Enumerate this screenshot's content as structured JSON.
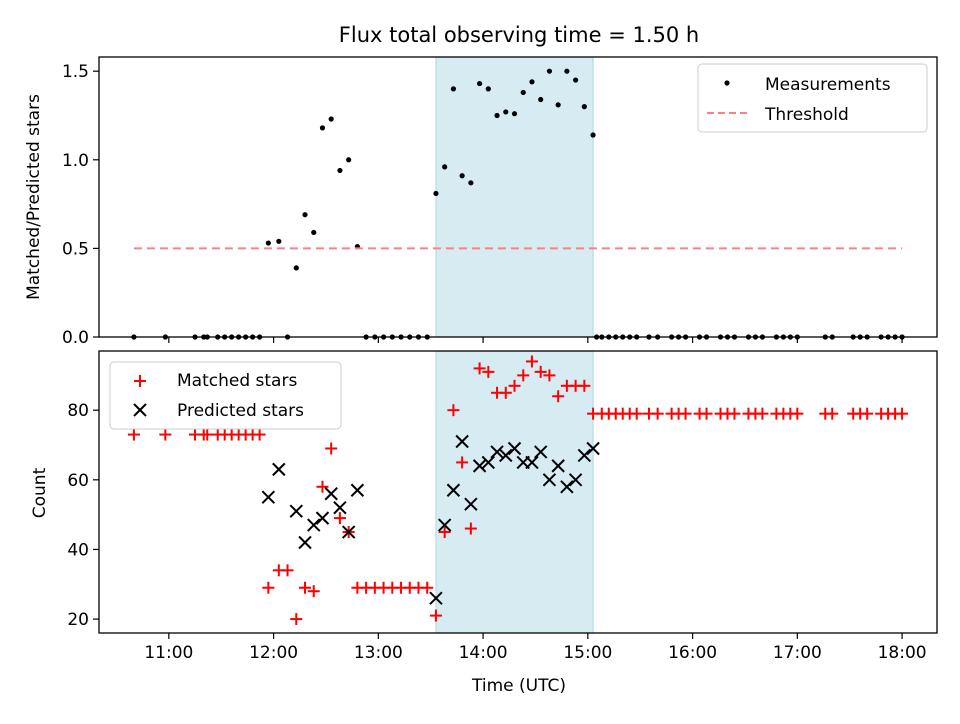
{
  "chart_data": [
    {
      "type": "scatter",
      "title": "Flux total observing time = 1.50 h",
      "xlabel": "",
      "ylabel": "Matched/Predicted stars",
      "xlim": [
        "10:20",
        "18:20"
      ],
      "ylim": [
        0.0,
        1.58
      ],
      "yticks": [
        "0.0",
        "0.5",
        "1.0",
        "1.5"
      ],
      "xticks": [
        "11:00",
        "12:00",
        "13:00",
        "14:00",
        "15:00",
        "16:00",
        "17:00",
        "18:00"
      ],
      "shaded_span": [
        "13:33",
        "15:03"
      ],
      "legend_position": "upper right",
      "series": [
        {
          "name": "Measurements",
          "color": "#000000",
          "marker": "dot",
          "points": [
            [
              "10:40",
              0
            ],
            [
              "10:58",
              0
            ],
            [
              "11:15",
              0
            ],
            [
              "11:20",
              0
            ],
            [
              "11:22",
              0
            ],
            [
              "11:28",
              0
            ],
            [
              "11:32",
              0
            ],
            [
              "11:36",
              0
            ],
            [
              "11:40",
              0
            ],
            [
              "11:44",
              0
            ],
            [
              "11:48",
              0
            ],
            [
              "11:52",
              0
            ],
            [
              "11:57",
              0.53
            ],
            [
              "12:03",
              0.54
            ],
            [
              "12:08",
              0
            ],
            [
              "12:13",
              0.39
            ],
            [
              "12:18",
              0.69
            ],
            [
              "12:23",
              0.59
            ],
            [
              "12:28",
              1.18
            ],
            [
              "12:33",
              1.23
            ],
            [
              "12:38",
              0.94
            ],
            [
              "12:43",
              1.0
            ],
            [
              "12:48",
              0.51
            ],
            [
              "12:53",
              0
            ],
            [
              "12:58",
              0
            ],
            [
              "13:03",
              0
            ],
            [
              "13:08",
              0
            ],
            [
              "13:13",
              0
            ],
            [
              "13:18",
              0
            ],
            [
              "13:23",
              0
            ],
            [
              "13:28",
              0
            ],
            [
              "13:33",
              0.81
            ],
            [
              "13:38",
              0.96
            ],
            [
              "13:43",
              1.4
            ],
            [
              "13:48",
              0.91
            ],
            [
              "13:53",
              0.87
            ],
            [
              "13:58",
              1.43
            ],
            [
              "14:03",
              1.4
            ],
            [
              "14:08",
              1.25
            ],
            [
              "14:13",
              1.27
            ],
            [
              "14:18",
              1.26
            ],
            [
              "14:23",
              1.38
            ],
            [
              "14:28",
              1.44
            ],
            [
              "14:33",
              1.34
            ],
            [
              "14:38",
              1.5
            ],
            [
              "14:43",
              1.31
            ],
            [
              "14:48",
              1.5
            ],
            [
              "14:53",
              1.45
            ],
            [
              "14:58",
              1.3
            ],
            [
              "15:03",
              1.14
            ],
            [
              "15:05",
              0
            ],
            [
              "15:08",
              0
            ],
            [
              "15:12",
              0
            ],
            [
              "15:16",
              0
            ],
            [
              "15:20",
              0
            ],
            [
              "15:24",
              0
            ],
            [
              "15:28",
              0
            ],
            [
              "15:35",
              0
            ],
            [
              "15:40",
              0
            ],
            [
              "15:48",
              0
            ],
            [
              "15:52",
              0
            ],
            [
              "15:56",
              0
            ],
            [
              "16:04",
              0
            ],
            [
              "16:08",
              0
            ],
            [
              "16:16",
              0
            ],
            [
              "16:20",
              0
            ],
            [
              "16:24",
              0
            ],
            [
              "16:32",
              0
            ],
            [
              "16:36",
              0
            ],
            [
              "16:40",
              0
            ],
            [
              "16:48",
              0
            ],
            [
              "16:52",
              0
            ],
            [
              "16:56",
              0
            ],
            [
              "17:00",
              0
            ],
            [
              "17:16",
              0
            ],
            [
              "17:20",
              0
            ],
            [
              "17:32",
              0
            ],
            [
              "17:36",
              0
            ],
            [
              "17:40",
              0
            ],
            [
              "17:48",
              0
            ],
            [
              "17:52",
              0
            ],
            [
              "17:56",
              0
            ],
            [
              "18:00",
              0
            ]
          ]
        },
        {
          "name": "Threshold",
          "color": "#ff7f7f",
          "style": "dashed",
          "points": [
            [
              "10:40",
              0.5
            ],
            [
              "18:00",
              0.5
            ]
          ]
        }
      ]
    },
    {
      "type": "scatter",
      "title": "",
      "xlabel": "Time (UTC)",
      "ylabel": "Count",
      "xlim": [
        "10:20",
        "18:20"
      ],
      "ylim": [
        16,
        97
      ],
      "yticks": [
        "20",
        "40",
        "60",
        "80"
      ],
      "xticks": [
        "11:00",
        "12:00",
        "13:00",
        "14:00",
        "15:00",
        "16:00",
        "17:00",
        "18:00"
      ],
      "shaded_span": [
        "13:33",
        "15:03"
      ],
      "legend_position": "upper left",
      "series": [
        {
          "name": "Matched stars",
          "color": "#ff0000",
          "marker": "plus",
          "points": [
            [
              "10:40",
              73
            ],
            [
              "10:58",
              73
            ],
            [
              "11:15",
              73
            ],
            [
              "11:20",
              73
            ],
            [
              "11:22",
              73
            ],
            [
              "11:28",
              73
            ],
            [
              "11:32",
              73
            ],
            [
              "11:36",
              73
            ],
            [
              "11:40",
              73
            ],
            [
              "11:44",
              73
            ],
            [
              "11:48",
              73
            ],
            [
              "11:52",
              73
            ],
            [
              "11:57",
              29
            ],
            [
              "12:03",
              34
            ],
            [
              "12:08",
              34
            ],
            [
              "12:13",
              20
            ],
            [
              "12:18",
              29
            ],
            [
              "12:23",
              28
            ],
            [
              "12:28",
              58
            ],
            [
              "12:33",
              69
            ],
            [
              "12:38",
              49
            ],
            [
              "12:43",
              45
            ],
            [
              "12:48",
              29
            ],
            [
              "12:53",
              29
            ],
            [
              "12:58",
              29
            ],
            [
              "13:03",
              29
            ],
            [
              "13:08",
              29
            ],
            [
              "13:13",
              29
            ],
            [
              "13:18",
              29
            ],
            [
              "13:23",
              29
            ],
            [
              "13:28",
              29
            ],
            [
              "13:33",
              21
            ],
            [
              "13:38",
              45
            ],
            [
              "13:43",
              80
            ],
            [
              "13:48",
              65
            ],
            [
              "13:53",
              46
            ],
            [
              "13:58",
              92
            ],
            [
              "14:03",
              91
            ],
            [
              "14:08",
              85
            ],
            [
              "14:13",
              85
            ],
            [
              "14:18",
              87
            ],
            [
              "14:23",
              90
            ],
            [
              "14:28",
              94
            ],
            [
              "14:33",
              91
            ],
            [
              "14:38",
              90
            ],
            [
              "14:43",
              84
            ],
            [
              "14:48",
              87
            ],
            [
              "14:53",
              87
            ],
            [
              "14:58",
              87
            ],
            [
              "15:03",
              79
            ],
            [
              "15:08",
              79
            ],
            [
              "15:12",
              79
            ],
            [
              "15:16",
              79
            ],
            [
              "15:20",
              79
            ],
            [
              "15:24",
              79
            ],
            [
              "15:28",
              79
            ],
            [
              "15:35",
              79
            ],
            [
              "15:40",
              79
            ],
            [
              "15:48",
              79
            ],
            [
              "15:52",
              79
            ],
            [
              "15:56",
              79
            ],
            [
              "16:04",
              79
            ],
            [
              "16:08",
              79
            ],
            [
              "16:16",
              79
            ],
            [
              "16:20",
              79
            ],
            [
              "16:24",
              79
            ],
            [
              "16:32",
              79
            ],
            [
              "16:36",
              79
            ],
            [
              "16:40",
              79
            ],
            [
              "16:48",
              79
            ],
            [
              "16:52",
              79
            ],
            [
              "16:56",
              79
            ],
            [
              "17:00",
              79
            ],
            [
              "17:16",
              79
            ],
            [
              "17:20",
              79
            ],
            [
              "17:32",
              79
            ],
            [
              "17:36",
              79
            ],
            [
              "17:40",
              79
            ],
            [
              "17:48",
              79
            ],
            [
              "17:52",
              79
            ],
            [
              "17:56",
              79
            ],
            [
              "18:00",
              79
            ]
          ]
        },
        {
          "name": "Predicted stars",
          "color": "#000000",
          "marker": "x",
          "points": [
            [
              "11:57",
              55
            ],
            [
              "12:03",
              63
            ],
            [
              "12:13",
              51
            ],
            [
              "12:18",
              42
            ],
            [
              "12:23",
              47
            ],
            [
              "12:28",
              49
            ],
            [
              "12:33",
              56
            ],
            [
              "12:38",
              52
            ],
            [
              "12:43",
              45
            ],
            [
              "12:48",
              57
            ],
            [
              "13:33",
              26
            ],
            [
              "13:38",
              47
            ],
            [
              "13:43",
              57
            ],
            [
              "13:48",
              71
            ],
            [
              "13:53",
              53
            ],
            [
              "13:58",
              64
            ],
            [
              "14:03",
              65
            ],
            [
              "14:08",
              68
            ],
            [
              "14:13",
              67
            ],
            [
              "14:18",
              69
            ],
            [
              "14:23",
              65
            ],
            [
              "14:28",
              65
            ],
            [
              "14:33",
              68
            ],
            [
              "14:38",
              60
            ],
            [
              "14:43",
              64
            ],
            [
              "14:48",
              58
            ],
            [
              "14:53",
              60
            ],
            [
              "14:58",
              67
            ],
            [
              "15:03",
              69
            ]
          ]
        }
      ]
    }
  ]
}
